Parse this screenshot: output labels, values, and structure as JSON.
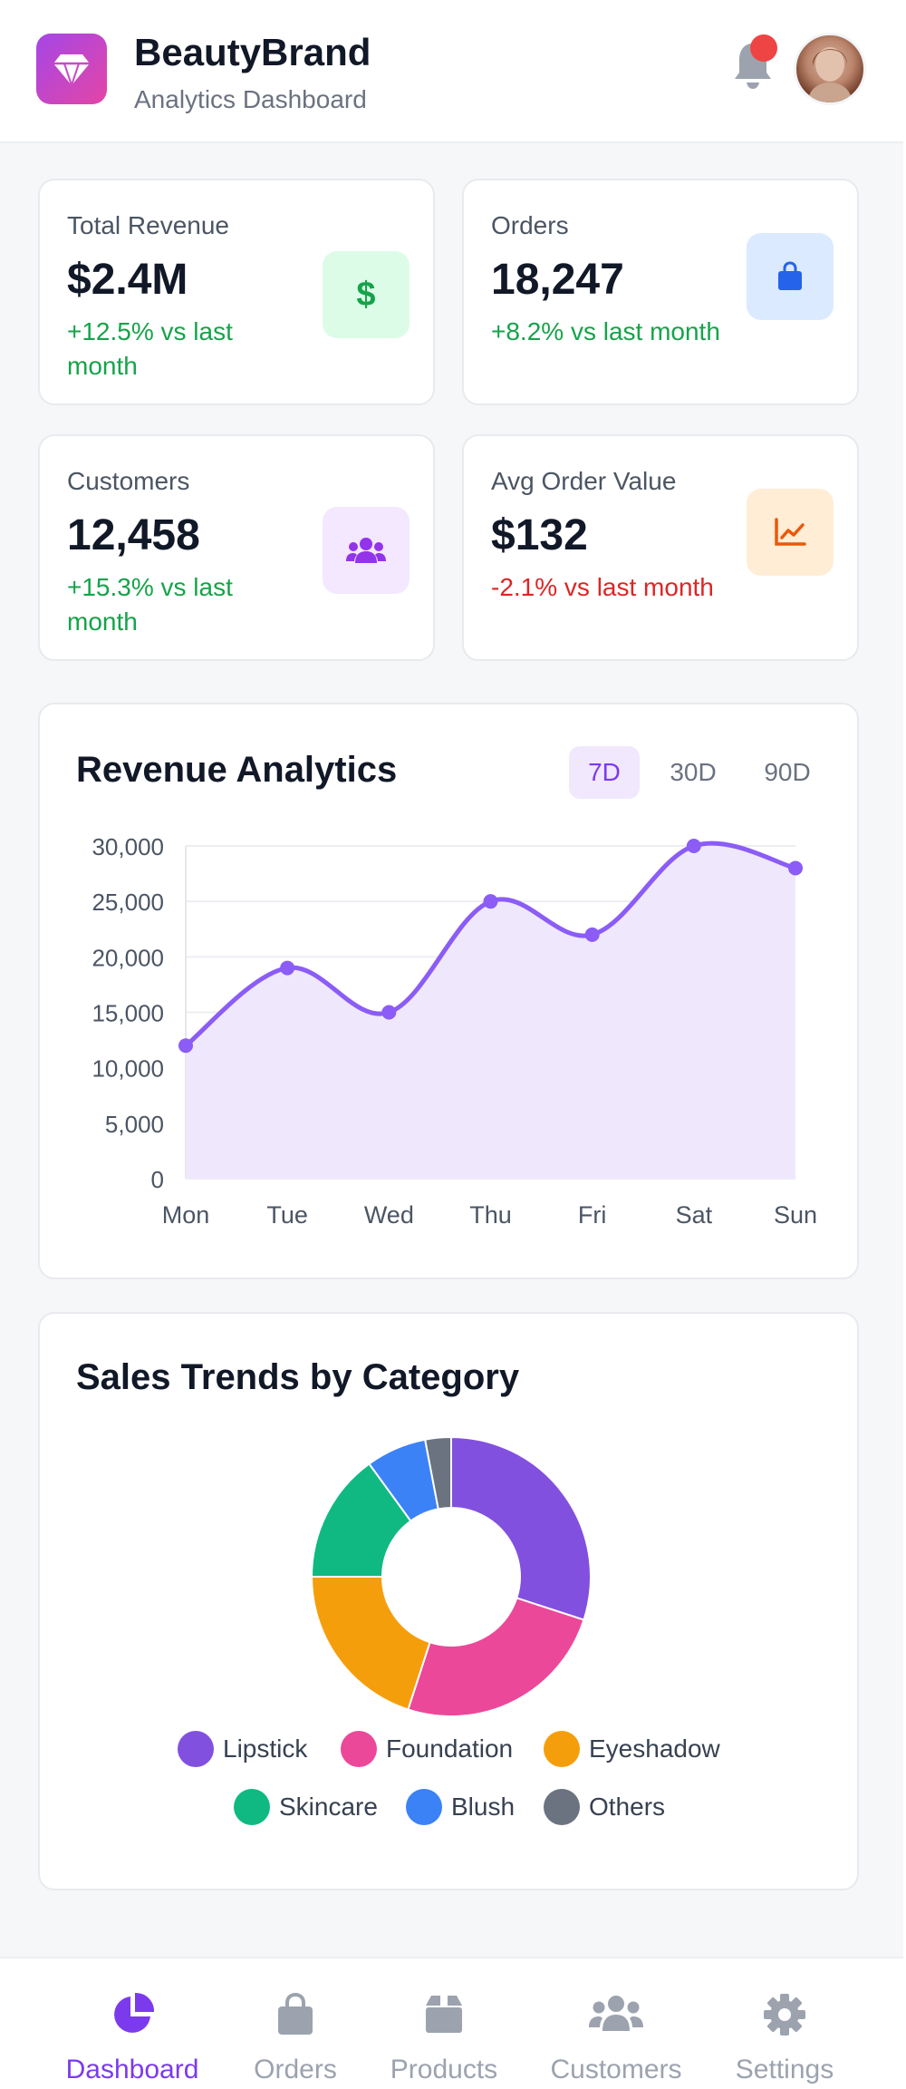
{
  "header": {
    "brand_title": "BeautyBrand",
    "brand_subtitle": "Analytics Dashboard",
    "logo_icon": "gem-icon",
    "notification_icon": "bell-icon",
    "avatar_icon": "user-avatar"
  },
  "stats": [
    {
      "label": "Total Revenue",
      "value": "$2.4M",
      "change": "+12.5% vs last month",
      "trend": "up",
      "icon": "dollar-icon",
      "icon_text": "$",
      "icon_color": "#16a34a",
      "icon_bg": "#dcfce7"
    },
    {
      "label": "Orders",
      "value": "18,247",
      "change": "+8.2% vs last month",
      "trend": "up",
      "icon": "shopping-bag-icon",
      "icon_color": "#2563eb",
      "icon_bg": "#dbeafe"
    },
    {
      "label": "Customers",
      "value": "12,458",
      "change": "+15.3% vs last month",
      "trend": "up",
      "icon": "users-icon",
      "icon_color": "#9333ea",
      "icon_bg": "#f3e8ff"
    },
    {
      "label": "Avg Order Value",
      "value": "$132",
      "change": "-2.1% vs last month",
      "trend": "down",
      "icon": "chart-line-icon",
      "icon_color": "#ea580c",
      "icon_bg": "#ffedd5"
    }
  ],
  "revenue": {
    "title": "Revenue Analytics",
    "ranges": [
      "7D",
      "30D",
      "90D"
    ],
    "active_range": "7D"
  },
  "sales": {
    "title": "Sales Trends by Category"
  },
  "chart_data": [
    {
      "type": "line",
      "title": "Revenue Analytics",
      "xlabel": "",
      "ylabel": "",
      "categories": [
        "Mon",
        "Tue",
        "Wed",
        "Thu",
        "Fri",
        "Sat",
        "Sun"
      ],
      "values": [
        12000,
        19000,
        15000,
        25000,
        22000,
        30000,
        28000
      ],
      "ylim": [
        0,
        30000
      ],
      "yticks": [
        0,
        5000,
        10000,
        15000,
        20000,
        25000,
        30000
      ],
      "ytick_labels": [
        "0",
        "5,000",
        "10,000",
        "15,000",
        "20,000",
        "25,000",
        "30,000"
      ],
      "fill": true,
      "grid": true,
      "color": "#8b5cf6",
      "fill_color": "#efe8fd"
    },
    {
      "type": "pie",
      "title": "Sales Trends by Category",
      "donut": true,
      "legend": "bottom",
      "labels": [
        "Lipstick",
        "Foundation",
        "Eyeshadow",
        "Skincare",
        "Blush",
        "Others"
      ],
      "values": [
        30,
        25,
        20,
        15,
        7,
        3
      ],
      "colors": [
        "#8250df",
        "#ec4899",
        "#f59e0b",
        "#10b981",
        "#3b82f6",
        "#6b7280"
      ]
    }
  ],
  "nav": {
    "items": [
      {
        "label": "Dashboard",
        "icon": "chart-pie-icon",
        "active": true
      },
      {
        "label": "Orders",
        "icon": "shopping-bag-icon",
        "active": false
      },
      {
        "label": "Products",
        "icon": "box-icon",
        "active": false
      },
      {
        "label": "Customers",
        "icon": "users-icon",
        "active": false
      },
      {
        "label": "Settings",
        "icon": "gear-icon",
        "active": false
      }
    ]
  }
}
